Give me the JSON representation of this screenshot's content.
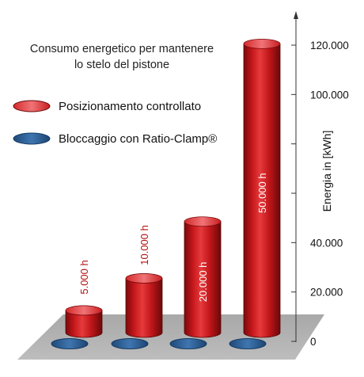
{
  "chart_data": {
    "type": "bar",
    "title_lines": [
      "Consumo energetico per mantenere",
      "lo stelo del pistone"
    ],
    "ylabel": "Energia in [kWh]",
    "ylim": [
      0,
      120000
    ],
    "y_ticks": [
      {
        "value": 0,
        "label": "0"
      },
      {
        "value": 20000,
        "label": "20.000"
      },
      {
        "value": 40000,
        "label": "40.000"
      },
      {
        "value": 60000,
        "label": ""
      },
      {
        "value": 80000,
        "label": ""
      },
      {
        "value": 100000,
        "label": "100.000"
      },
      {
        "value": 120000,
        "label": "120.000"
      }
    ],
    "categories": [
      "5.000 h",
      "10.000 h",
      "20.000 h",
      "50.000 h"
    ],
    "legend_position": "top-left",
    "series": [
      {
        "name": "Posizionamento controllato",
        "color": "#d0171b",
        "values": [
          9000,
          22000,
          45000,
          117000
        ]
      },
      {
        "name": "Bloccaggio con Ratio-Clamp®",
        "color": "#2f5f95",
        "values": [
          0,
          0,
          0,
          0
        ]
      }
    ]
  }
}
